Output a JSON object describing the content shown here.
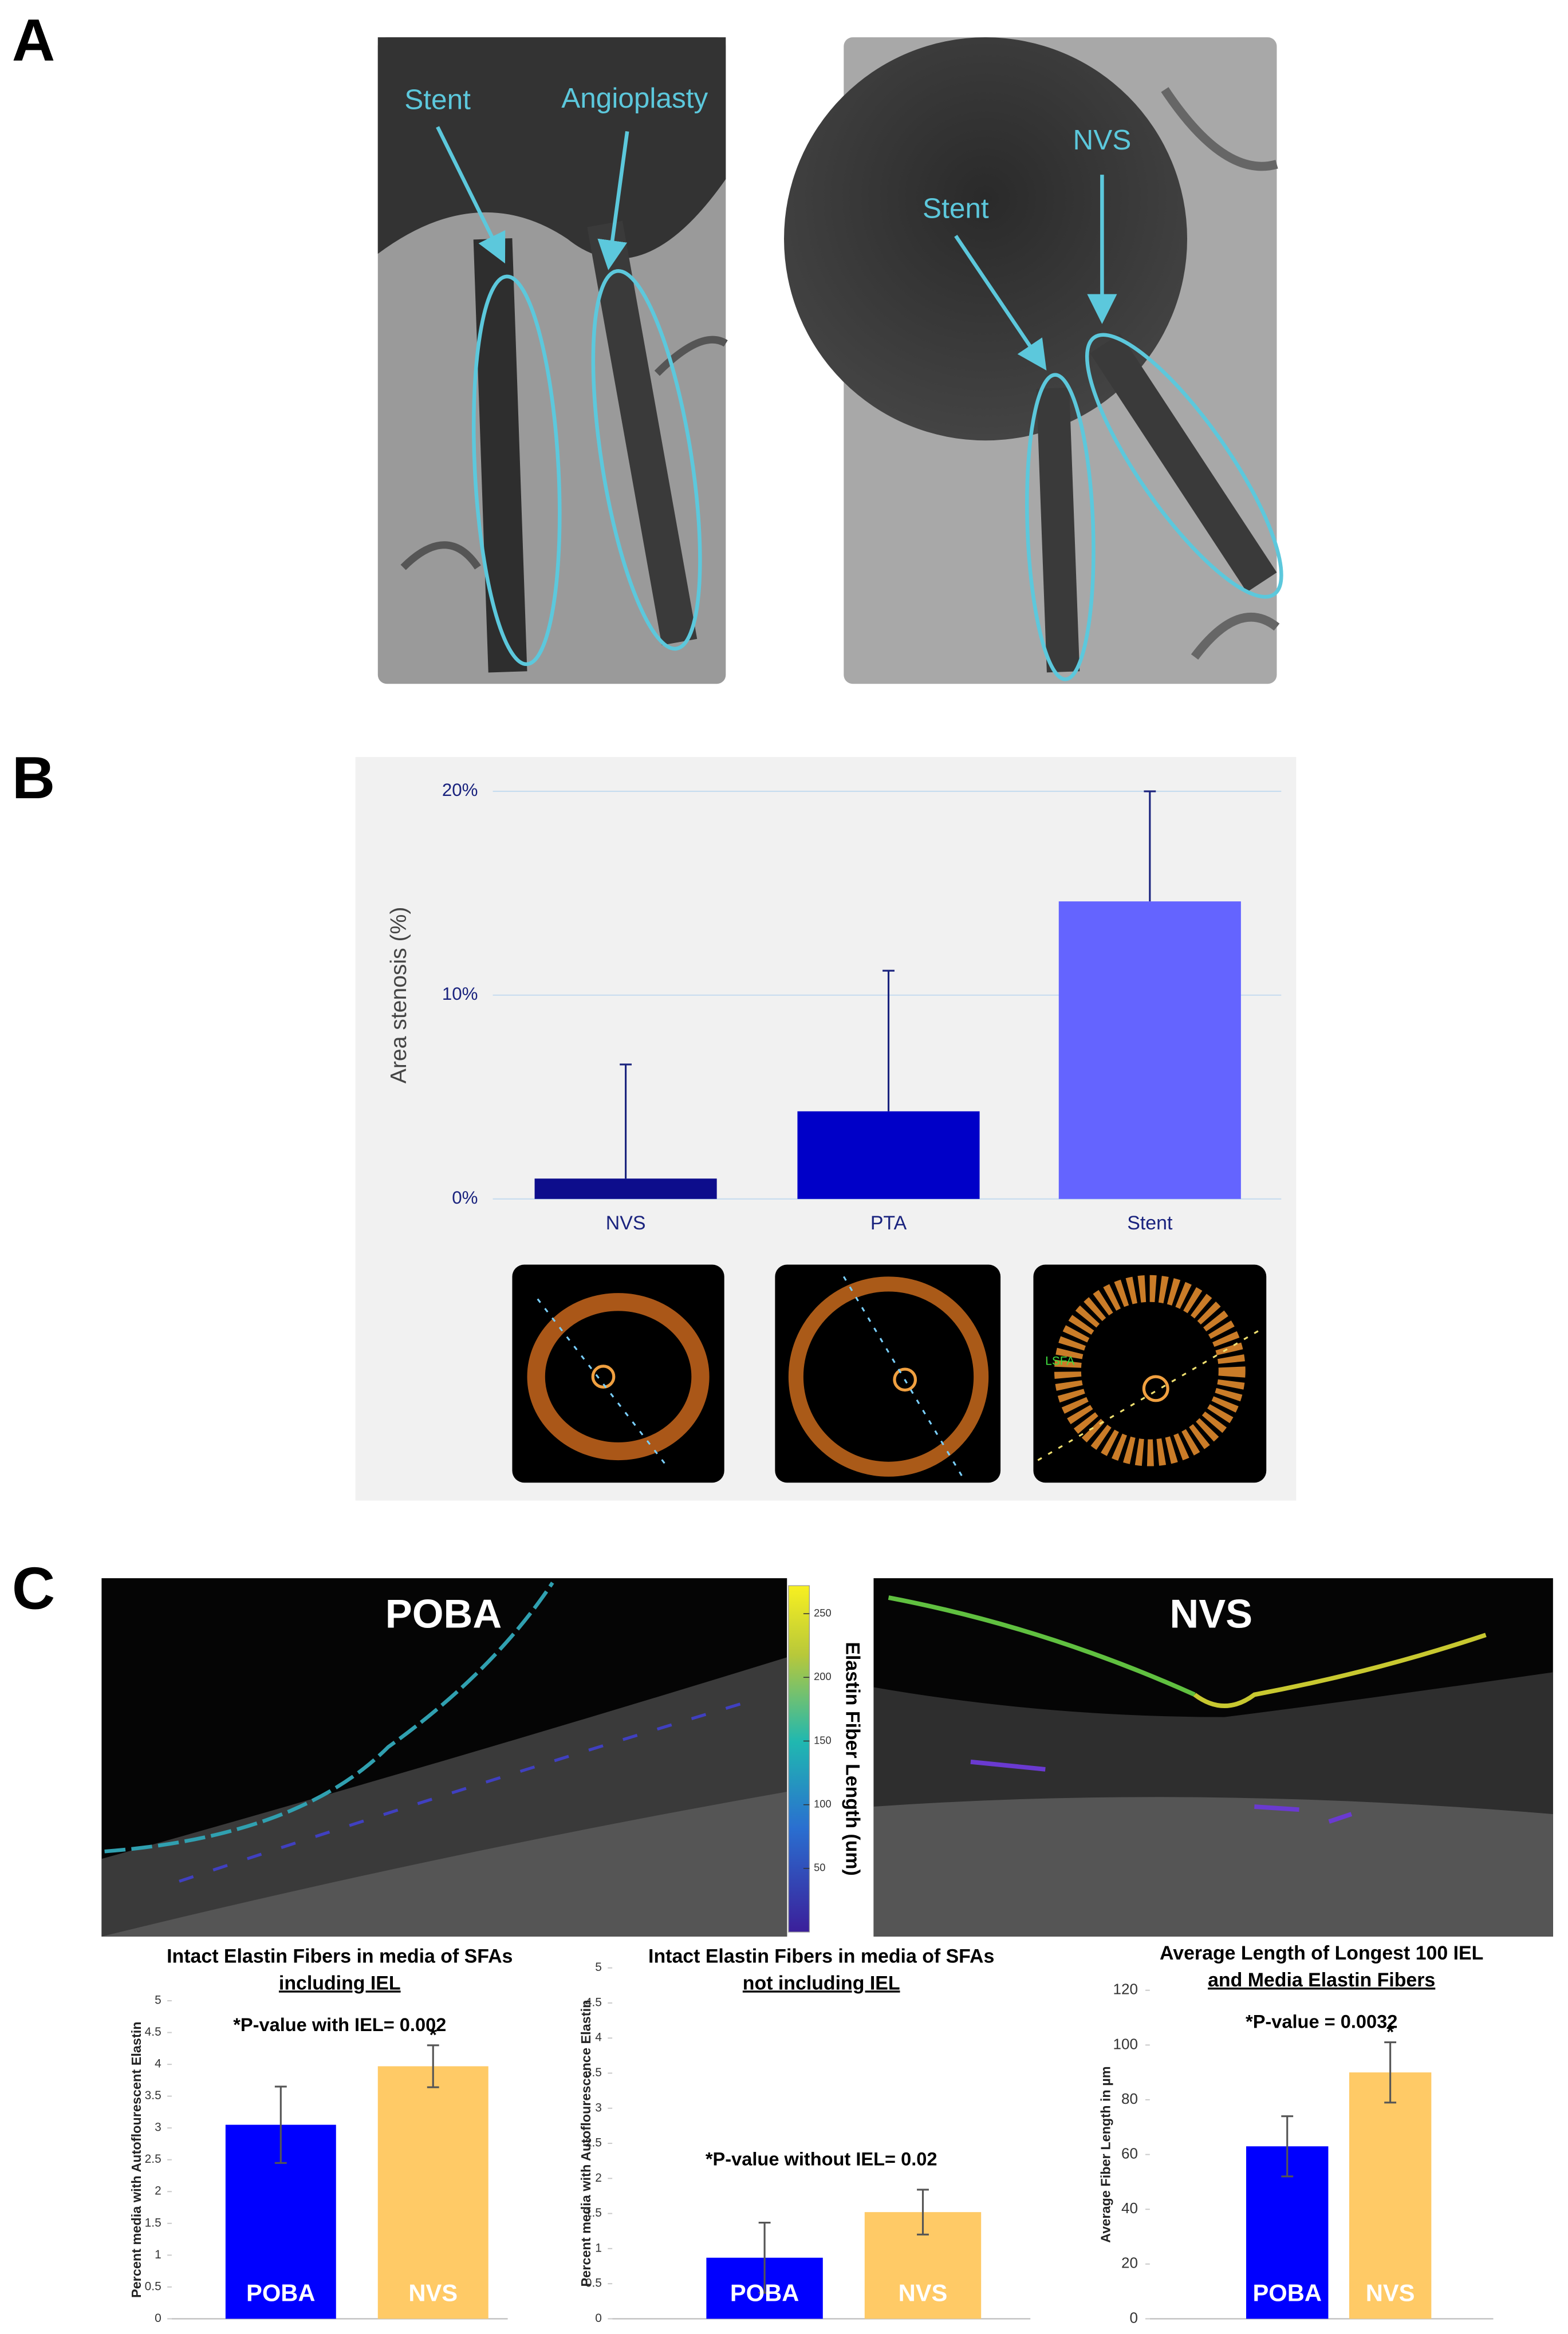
{
  "panels": {
    "a": "A",
    "b": "B",
    "c": "C"
  },
  "angiograms": [
    {
      "labels": [
        "Stent",
        "Angioplasty"
      ]
    },
    {
      "labels": [
        "NVS",
        "Stent"
      ]
    }
  ],
  "oct_label": "LSFA",
  "histology": {
    "left_label": "POBA",
    "right_label": "NVS",
    "colorbar": {
      "label": "Elastin Fiber Length (um)",
      "lim": [
        0,
        272
      ],
      "ticks": [
        50,
        100,
        150,
        200,
        250
      ]
    }
  },
  "chart_data": [
    {
      "type": "bar",
      "ylabel": "Area stenosis (%)",
      "categories": [
        "NVS",
        "PTA",
        "Stent"
      ],
      "values": [
        1,
        4.3,
        14.6
      ],
      "errors": [
        5.6,
        6.9,
        5.4
      ],
      "error_bars": "upper",
      "colors": [
        "#0d0d8c",
        "#0000c8",
        "#6464ff"
      ],
      "ylim": [
        0,
        20
      ],
      "yticks": [
        {
          "value": 0,
          "label": "0%"
        },
        {
          "value": 10,
          "label": "10%"
        },
        {
          "value": 20,
          "label": "20%"
        }
      ],
      "grid": true
    },
    {
      "type": "bar",
      "title": "Intact Elastin Fibers in media of SFAs",
      "subtitle": "including IEL",
      "annotation": "*P-value with IEL= 0.002",
      "ylabel": "Percent media with Autoflourescent Elastin",
      "categories": [
        "POBA",
        "NVS"
      ],
      "values": [
        3.05,
        3.97
      ],
      "errors": [
        0.6,
        0.33
      ],
      "error_bars": "both",
      "significance_labels": [
        null,
        "*"
      ],
      "colors": [
        "#0000ff",
        "#ffca66"
      ],
      "ylim": [
        0,
        5
      ],
      "yticks": [
        0,
        0.5,
        1,
        1.5,
        2,
        2.5,
        3,
        3.5,
        4,
        4.5,
        5
      ],
      "grid": false
    },
    {
      "type": "bar",
      "title": "Intact Elastin Fibers in media of SFAs",
      "subtitle": "not including IEL",
      "annotation": "*P-value without IEL= 0.02",
      "ylabel": "Percent media with Autoflourescence Elastin",
      "categories": [
        "POBA",
        "NVS"
      ],
      "values": [
        0.87,
        1.52
      ],
      "errors": [
        0.5,
        0.32
      ],
      "error_bars": "both",
      "colors": [
        "#0000ff",
        "#ffca66"
      ],
      "ylim": [
        0,
        5
      ],
      "yticks": [
        0,
        0.5,
        1,
        1.5,
        2,
        2.5,
        3,
        3.5,
        4,
        4.5,
        5
      ],
      "grid": false
    },
    {
      "type": "bar",
      "title": "Average Length of Longest 100 IEL",
      "subtitle": "and Media Elastin Fibers",
      "annotation": "*P-value = 0.0032",
      "ylabel": "Average Fiber Length in µm",
      "categories": [
        "POBA",
        "NVS"
      ],
      "values": [
        63,
        90
      ],
      "errors": [
        11,
        11
      ],
      "error_bars": "both",
      "significance_labels": [
        null,
        "*"
      ],
      "colors": [
        "#0000ff",
        "#ffca66"
      ],
      "ylim": [
        0,
        120
      ],
      "yticks": [
        0,
        20,
        40,
        60,
        80,
        100,
        120
      ],
      "grid": false
    }
  ]
}
